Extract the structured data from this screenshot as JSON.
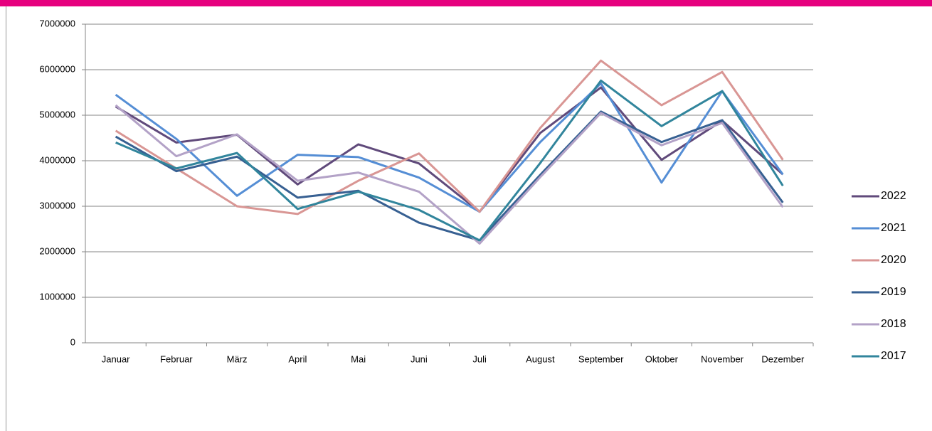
{
  "chart_data": {
    "type": "line",
    "categories": [
      "Januar",
      "Februar",
      "März",
      "April",
      "Mai",
      "Juni",
      "Juli",
      "August",
      "September",
      "Oktober",
      "November",
      "Dezember"
    ],
    "series": [
      {
        "name": "2022",
        "color": "#604a7b",
        "values": [
          5190000,
          4400000,
          4570000,
          3480000,
          4360000,
          3940000,
          2880000,
          4610000,
          5610000,
          4020000,
          4880000,
          3700000
        ]
      },
      {
        "name": "2021",
        "color": "#558ed5",
        "values": [
          5450000,
          4480000,
          3230000,
          4130000,
          4080000,
          3630000,
          2880000,
          4410000,
          5700000,
          3520000,
          5530000,
          3700000
        ]
      },
      {
        "name": "2020",
        "color": "#d99694",
        "values": [
          4660000,
          3830000,
          3000000,
          2830000,
          3560000,
          4160000,
          2880000,
          4720000,
          6200000,
          5220000,
          5950000,
          4020000
        ]
      },
      {
        "name": "2019",
        "color": "#376092",
        "values": [
          4530000,
          3770000,
          4090000,
          3190000,
          3340000,
          2640000,
          2250000,
          3690000,
          5080000,
          4410000,
          4890000,
          3080000
        ]
      },
      {
        "name": "2018",
        "color": "#b3a2c7",
        "values": [
          5220000,
          4100000,
          4580000,
          3560000,
          3740000,
          3320000,
          2180000,
          3640000,
          5050000,
          4340000,
          4830000,
          2980000
        ]
      },
      {
        "name": "2017",
        "color": "#31859c",
        "values": [
          4400000,
          3830000,
          4170000,
          2940000,
          3320000,
          2920000,
          2250000,
          3950000,
          5760000,
          4760000,
          5530000,
          3450000
        ]
      }
    ],
    "ylim": [
      0,
      7000000
    ],
    "yticks": [
      0,
      1000000,
      2000000,
      3000000,
      4000000,
      5000000,
      6000000,
      7000000
    ],
    "grid": true,
    "legend": "right"
  }
}
